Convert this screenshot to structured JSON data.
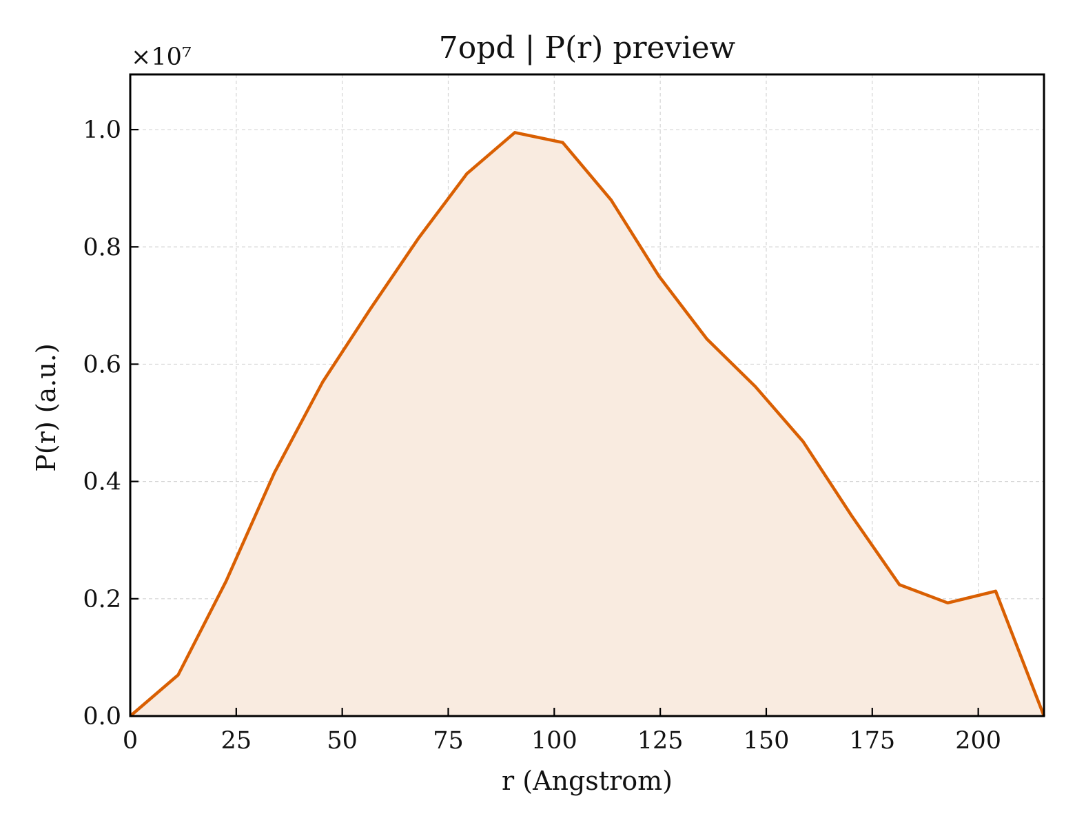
{
  "chart_data": {
    "type": "area",
    "title": "7opd | P(r) preview",
    "xlabel": "r (Angstrom)",
    "ylabel": "P(r) (a.u.)",
    "y_scale_label": "×10⁷",
    "y_multiplier": 10000000,
    "xlim": [
      0,
      215.5
    ],
    "ylim": [
      0,
      1.0941
    ],
    "x_ticks": [
      0,
      25,
      50,
      75,
      100,
      125,
      150,
      175,
      200
    ],
    "x_tick_labels": [
      "0",
      "25",
      "50",
      "75",
      "100",
      "125",
      "150",
      "175",
      "200"
    ],
    "y_ticks": [
      0.0,
      0.2,
      0.4,
      0.6,
      0.8,
      1.0
    ],
    "y_tick_labels": [
      "0.0",
      "0.2",
      "0.4",
      "0.6",
      "0.8",
      "1.0"
    ],
    "grid": true,
    "line_color": "#d95f02",
    "fill_color": "#f9ebe0",
    "x": [
      0,
      11.3,
      22.6,
      34.0,
      45.4,
      56.7,
      68.0,
      79.4,
      90.7,
      102.0,
      113.4,
      124.7,
      136.0,
      147.4,
      158.7,
      170.1,
      181.4,
      192.8,
      204.1,
      215.5
    ],
    "y": [
      0.0,
      0.07,
      0.23,
      0.415,
      0.57,
      0.695,
      0.815,
      0.925,
      0.995,
      0.978,
      0.88,
      0.75,
      0.643,
      0.562,
      0.468,
      0.342,
      0.224,
      0.193,
      0.213,
      0.0
    ]
  }
}
